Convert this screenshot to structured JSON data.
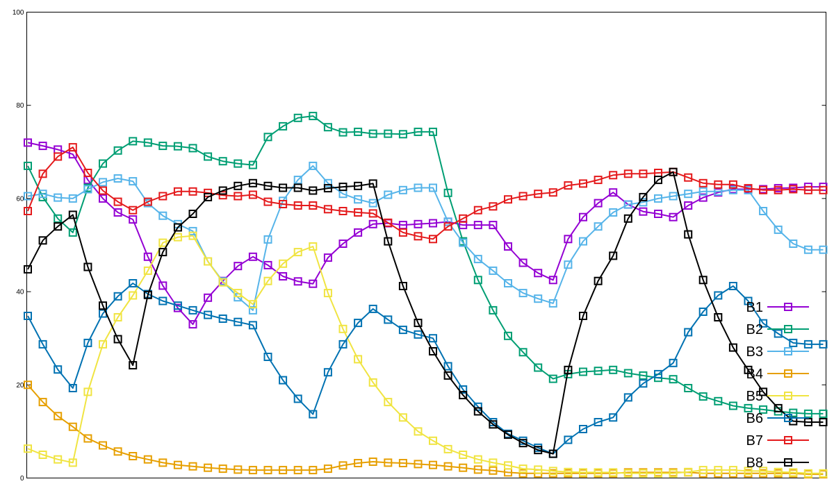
{
  "chart_data": {
    "type": "line",
    "title": "",
    "xlabel": "",
    "ylabel": "",
    "ylim": [
      0,
      100
    ],
    "y_ticks": [
      "0",
      "20",
      "40",
      "60",
      "80",
      "100"
    ],
    "grid": false,
    "legend_placement": "bottom-right",
    "x": [
      0,
      1,
      2,
      3,
      4,
      5,
      6,
      7,
      8,
      9,
      10,
      11,
      12,
      13,
      14,
      15,
      16,
      17,
      18,
      19,
      20,
      21,
      22,
      23,
      24,
      25,
      26,
      27,
      28,
      29,
      30,
      31,
      32,
      33,
      34,
      35,
      36,
      37,
      38,
      39,
      40,
      41,
      42,
      43,
      44,
      45,
      46,
      47,
      48,
      49,
      50,
      51,
      52,
      53
    ],
    "series": [
      {
        "name": "B1",
        "color": "#9400D3",
        "values": [
          72.0,
          71.3,
          70.5,
          69.5,
          64.0,
          60.0,
          57.0,
          55.5,
          47.5,
          41.3,
          36.5,
          33.0,
          38.7,
          42.3,
          45.5,
          47.5,
          45.7,
          43.3,
          42.2,
          41.7,
          47.3,
          50.3,
          52.7,
          54.5,
          54.7,
          54.3,
          54.5,
          54.7,
          55.0,
          54.3,
          54.3,
          54.3,
          49.7,
          46.2,
          44.0,
          42.5,
          51.3,
          56.0,
          59.0,
          61.3,
          58.7,
          57.2,
          56.7,
          56.0,
          58.5,
          60.2,
          61.3,
          62.0,
          62.0,
          62.0,
          62.2,
          62.3,
          62.5,
          62.5
        ]
      },
      {
        "name": "B2",
        "color": "#009E73",
        "values": [
          67.0,
          60.3,
          55.7,
          52.7,
          62.3,
          67.5,
          70.3,
          72.3,
          72.0,
          71.3,
          71.2,
          70.8,
          69.0,
          68.0,
          67.5,
          67.2,
          73.2,
          75.5,
          77.3,
          77.7,
          75.3,
          74.2,
          74.3,
          73.9,
          73.9,
          73.8,
          74.3,
          74.3,
          61.2,
          50.8,
          42.5,
          36.0,
          30.5,
          27.0,
          23.7,
          21.3,
          22.3,
          22.8,
          23.0,
          23.2,
          22.5,
          22.0,
          21.5,
          21.2,
          19.3,
          17.5,
          16.5,
          15.5,
          15.0,
          14.7,
          14.3,
          14.0,
          13.8,
          13.8
        ]
      },
      {
        "name": "B3",
        "color": "#56B4E9",
        "values": [
          60.5,
          61.0,
          60.2,
          60.0,
          62.0,
          63.5,
          64.3,
          63.7,
          59.0,
          56.3,
          54.5,
          53.0,
          46.5,
          42.2,
          38.8,
          36.0,
          51.2,
          59.5,
          64.0,
          67.0,
          63.3,
          61.0,
          59.8,
          59.0,
          60.8,
          61.8,
          62.3,
          62.3,
          55.0,
          50.5,
          47.0,
          44.5,
          41.8,
          39.7,
          38.5,
          37.5,
          45.8,
          50.8,
          54.0,
          57.0,
          58.7,
          59.2,
          60.0,
          60.5,
          61.0,
          61.5,
          61.5,
          61.8,
          61.8,
          57.3,
          53.3,
          50.3,
          49.0,
          49.0
        ]
      },
      {
        "name": "B4",
        "color": "#E69F00",
        "values": [
          20.0,
          16.3,
          13.3,
          11.0,
          8.5,
          7.0,
          5.7,
          4.7,
          4.0,
          3.3,
          2.8,
          2.5,
          2.2,
          2.0,
          1.8,
          1.7,
          1.7,
          1.7,
          1.7,
          1.7,
          2.0,
          2.7,
          3.2,
          3.5,
          3.3,
          3.2,
          3.0,
          2.8,
          2.5,
          2.2,
          1.8,
          1.6,
          1.2,
          1.0,
          1.0,
          1.0,
          1.0,
          1.0,
          1.0,
          1.0,
          1.2,
          1.2,
          1.2,
          1.2,
          1.2,
          1.0,
          1.0,
          1.0,
          1.0,
          1.0,
          1.0,
          1.0,
          0.8,
          0.8
        ]
      },
      {
        "name": "B5",
        "color": "#F0E442",
        "values": [
          6.3,
          5.0,
          4.0,
          3.3,
          18.5,
          28.7,
          34.5,
          39.2,
          44.5,
          50.5,
          51.7,
          52.0,
          46.5,
          42.0,
          39.7,
          37.3,
          42.3,
          46.0,
          48.5,
          49.7,
          39.7,
          32.0,
          25.5,
          20.5,
          16.3,
          13.0,
          10.0,
          8.0,
          6.2,
          5.0,
          4.0,
          3.3,
          2.7,
          2.0,
          1.8,
          1.5,
          1.3,
          1.2,
          1.2,
          1.2,
          1.0,
          1.0,
          1.0,
          1.0,
          1.3,
          1.7,
          1.7,
          1.7,
          1.5,
          1.5,
          1.3,
          1.2,
          1.0,
          1.0
        ]
      },
      {
        "name": "B6",
        "color": "#0072B2",
        "values": [
          34.8,
          28.7,
          23.3,
          19.3,
          29.0,
          35.3,
          39.0,
          41.8,
          39.5,
          38.0,
          37.0,
          36.0,
          35.0,
          34.2,
          33.5,
          32.8,
          26.0,
          21.0,
          17.0,
          13.7,
          22.7,
          28.7,
          33.3,
          36.3,
          34.0,
          31.8,
          30.8,
          30.0,
          24.0,
          19.0,
          15.3,
          12.0,
          9.5,
          8.0,
          6.5,
          5.2,
          8.2,
          10.5,
          12.0,
          13.0,
          17.3,
          20.3,
          22.3,
          24.7,
          31.3,
          35.7,
          39.2,
          41.2,
          38.0,
          33.2,
          31.0,
          29.0,
          28.7,
          28.7
        ]
      },
      {
        "name": "B7",
        "color": "#E41A1C",
        "values": [
          57.3,
          65.3,
          69.0,
          71.0,
          65.5,
          61.7,
          59.3,
          57.5,
          59.3,
          60.5,
          61.5,
          61.5,
          61.2,
          60.7,
          60.5,
          60.8,
          59.3,
          58.8,
          58.5,
          58.5,
          57.7,
          57.3,
          57.0,
          56.8,
          54.8,
          52.7,
          51.9,
          51.3,
          54.0,
          55.7,
          57.5,
          58.3,
          59.8,
          60.5,
          61.0,
          61.3,
          62.8,
          63.2,
          64.0,
          65.0,
          65.3,
          65.3,
          65.5,
          65.7,
          64.5,
          63.3,
          63.0,
          63.0,
          62.2,
          61.8,
          61.8,
          62.0,
          61.8,
          61.8
        ]
      },
      {
        "name": "B8",
        "color": "#000000",
        "values": [
          44.8,
          51.0,
          54.0,
          56.5,
          45.3,
          37.0,
          29.8,
          24.2,
          39.3,
          48.5,
          53.8,
          56.7,
          60.3,
          61.7,
          62.7,
          63.3,
          62.7,
          62.3,
          62.3,
          61.7,
          62.2,
          62.5,
          62.7,
          63.2,
          50.8,
          41.2,
          33.3,
          27.2,
          22.0,
          17.8,
          14.3,
          11.5,
          9.3,
          7.5,
          6.0,
          5.2,
          23.2,
          34.8,
          42.3,
          47.7,
          55.7,
          60.3,
          64.0,
          65.7,
          52.3,
          42.5,
          34.5,
          28.0,
          23.2,
          18.5,
          15.0,
          12.2,
          12.0,
          12.0
        ]
      }
    ]
  }
}
